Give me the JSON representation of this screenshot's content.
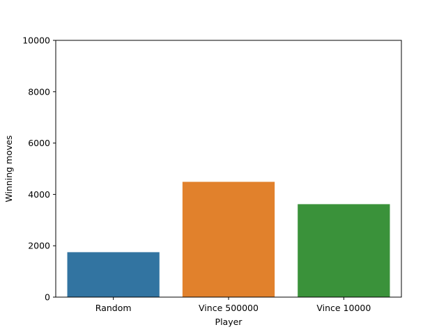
{
  "chart_data": {
    "type": "bar",
    "title": "",
    "xlabel": "Player",
    "ylabel": "Winning moves",
    "categories": [
      "Random",
      "Vince 500000",
      "Vince 10000"
    ],
    "values": [
      1750,
      4490,
      3620
    ],
    "colors": [
      "#3274a1",
      "#e1812c",
      "#3a923a"
    ],
    "ylim": [
      0,
      10000
    ],
    "yticks": [
      0,
      2000,
      4000,
      6000,
      8000,
      10000
    ],
    "grid": false,
    "legend": "none"
  }
}
